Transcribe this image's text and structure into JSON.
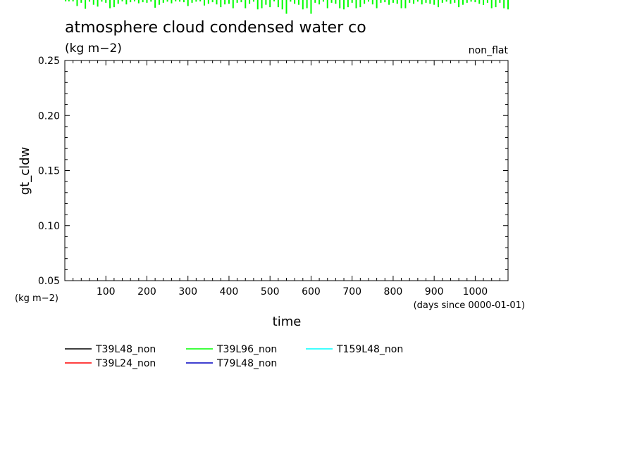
{
  "chart_data": {
    "type": "line",
    "title": "atmosphere cloud condensed water co",
    "units": "(kg m−2)",
    "tag": "non_flat",
    "xlabel": "time",
    "xunit": "(days since 0000-01-01)",
    "ylabel": "gt_cldw",
    "yunit": "(kg m−2)",
    "xlim": [
      0,
      1080
    ],
    "ylim": [
      0.05,
      0.25
    ],
    "xticks": [
      "100",
      "200",
      "300",
      "400",
      "500",
      "600",
      "700",
      "800",
      "900",
      "1000"
    ],
    "yticks": [
      "0.05",
      "0.10",
      "0.15",
      "0.20",
      "0.25"
    ],
    "grid": false,
    "legend_position": "bottom",
    "series": [
      {
        "name": "T39L48_non",
        "color": "#000000",
        "x": [],
        "y": []
      },
      {
        "name": "T39L24_non",
        "color": "#ff0000",
        "x": [],
        "y": []
      },
      {
        "name": "T39L96_non",
        "color": "#00ff00",
        "x": [
          2,
          10,
          20,
          30,
          40,
          50,
          60,
          70,
          80,
          90,
          100,
          110,
          120,
          130,
          140,
          150,
          160,
          170,
          180,
          190,
          200,
          210,
          220,
          230,
          240,
          250,
          260,
          270,
          280,
          290,
          300,
          310,
          320,
          330,
          340,
          350,
          360,
          370,
          380,
          390,
          400,
          410,
          420,
          430,
          440,
          450,
          460,
          470,
          480,
          490,
          500,
          510,
          520,
          530,
          540,
          550,
          560,
          570,
          580,
          590,
          600,
          610,
          620,
          630,
          640,
          650,
          660,
          670,
          680,
          690,
          700,
          710,
          720,
          730,
          740,
          750,
          760,
          770,
          780,
          790,
          800,
          810,
          820,
          830,
          840,
          850,
          860,
          870,
          880,
          890,
          900,
          910,
          920,
          930,
          940,
          950,
          960,
          970,
          980,
          990,
          1000,
          1010,
          1020,
          1030,
          1040,
          1050,
          1060,
          1070,
          1080
        ],
        "y": [
          0.2625,
          0.2635,
          0.263,
          0.268,
          0.265,
          0.2705,
          0.264,
          0.2668,
          0.2685,
          0.264,
          0.265,
          0.27,
          0.269,
          0.266,
          0.263,
          0.2665,
          0.2645,
          0.263,
          0.2655,
          0.2645,
          0.265,
          0.264,
          0.2695,
          0.2668,
          0.265,
          0.264,
          0.2655,
          0.263,
          0.264,
          0.2645,
          0.268,
          0.265,
          0.264,
          0.2638,
          0.2675,
          0.266,
          0.2645,
          0.2665,
          0.269,
          0.2665,
          0.266,
          0.27,
          0.265,
          0.2645,
          0.27,
          0.266,
          0.264,
          0.271,
          0.27,
          0.2668,
          0.269,
          0.263,
          0.269,
          0.271,
          0.275,
          0.264,
          0.266,
          0.2668,
          0.271,
          0.27,
          0.275,
          0.265,
          0.2665,
          0.264,
          0.27,
          0.265,
          0.266,
          0.27,
          0.271,
          0.269,
          0.265,
          0.27,
          0.269,
          0.266,
          0.264,
          0.2665,
          0.27,
          0.265,
          0.2645,
          0.2668,
          0.265,
          0.266,
          0.27,
          0.27,
          0.265,
          0.266,
          0.264,
          0.2665,
          0.265,
          0.266,
          0.2668,
          0.269,
          0.265,
          0.264,
          0.266,
          0.265,
          0.269,
          0.2668,
          0.265,
          0.264,
          0.2645,
          0.266,
          0.267,
          0.265,
          0.27,
          0.269,
          0.265,
          0.27,
          0.271
        ]
      },
      {
        "name": "T79L48_non",
        "color": "#0000c0",
        "x": [],
        "y": []
      },
      {
        "name": "T159L48_non",
        "color": "#00ffff",
        "x": [],
        "y": []
      }
    ]
  }
}
